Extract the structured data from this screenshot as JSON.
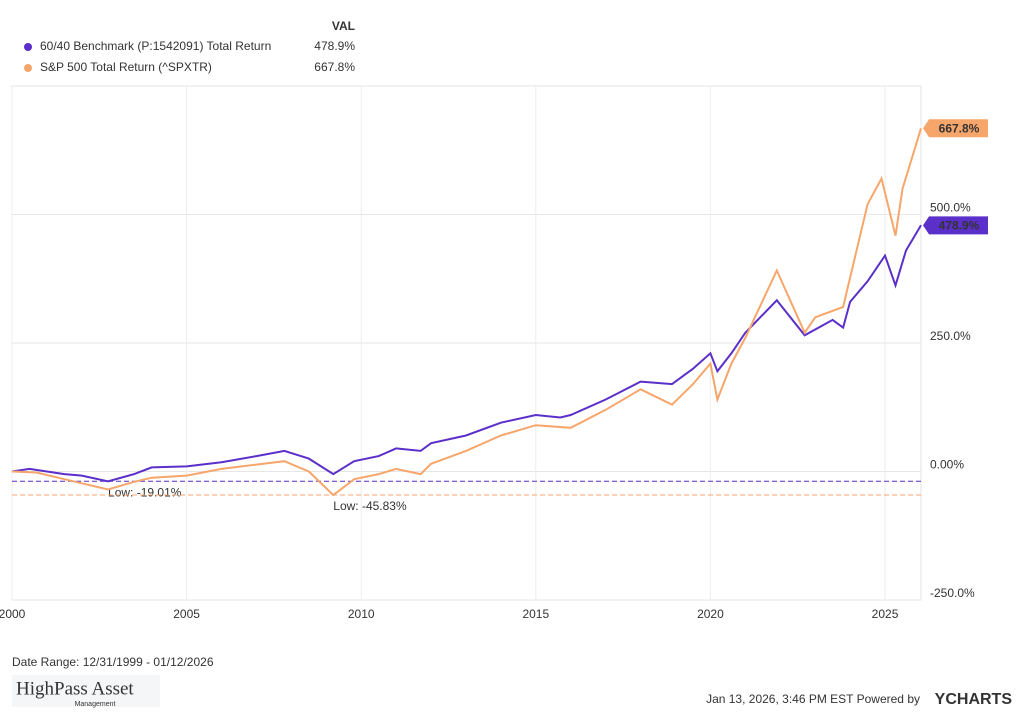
{
  "chart_data": {
    "type": "line",
    "legend_header": "VAL",
    "xlim": [
      2000,
      2026.03
    ],
    "xticks": [
      2000,
      2005,
      2010,
      2015,
      2020,
      2025
    ],
    "ylim": [
      -250,
      750
    ],
    "yticks": [
      {
        "value": -250,
        "label": "-250.0%"
      },
      {
        "value": 0,
        "label": "0.00%"
      },
      {
        "value": 250,
        "label": "250.0%"
      },
      {
        "value": 500,
        "label": "500.0%"
      }
    ],
    "grid": true,
    "series": [
      {
        "name": "60/40 Benchmark (P:1542091) Total Return",
        "color": "#5b2fc9",
        "end_label": "478.9%",
        "low": -19.01,
        "low_label": "Low: -19.01%",
        "x": [
          2000,
          2000.5,
          2001,
          2001.5,
          2002,
          2002.75,
          2003.5,
          2004,
          2005,
          2006,
          2007,
          2007.8,
          2008.5,
          2009.2,
          2009.8,
          2010.5,
          2011,
          2011.7,
          2012,
          2013,
          2014,
          2015,
          2015.7,
          2016,
          2017,
          2018,
          2018.9,
          2019.5,
          2020,
          2020.2,
          2020.6,
          2021,
          2021.9,
          2022.7,
          2023.5,
          2023.8,
          2024,
          2024.5,
          2025,
          2025.3,
          2025.6,
          2026.03
        ],
        "values": [
          0,
          5,
          0,
          -5,
          -8,
          -19.01,
          -5,
          8,
          10,
          18,
          30,
          40,
          25,
          -5,
          20,
          30,
          45,
          40,
          55,
          70,
          95,
          110,
          105,
          110,
          140,
          175,
          170,
          200,
          230,
          195,
          230,
          270,
          333,
          265,
          295,
          280,
          330,
          370,
          420,
          362,
          430,
          478.9
        ]
      },
      {
        "name": "S&P 500 Total Return (^SPXTR)",
        "color": "#f7a66b",
        "end_label": "667.8%",
        "low": -45.83,
        "low_label": "Low: -45.83%",
        "x": [
          2000,
          2000.7,
          2001.5,
          2002.75,
          2003.5,
          2004,
          2005,
          2006,
          2007.8,
          2008.5,
          2009.2,
          2009.8,
          2010.5,
          2011,
          2011.7,
          2012,
          2013,
          2014,
          2015,
          2016,
          2017,
          2018,
          2018.9,
          2019.5,
          2020,
          2020.2,
          2020.6,
          2021,
          2021.9,
          2022.7,
          2023,
          2023.8,
          2024.5,
          2024.9,
          2025.3,
          2025.5,
          2026.03
        ],
        "values": [
          0,
          -2,
          -15,
          -35,
          -20,
          -12,
          -8,
          5,
          20,
          0,
          -45.83,
          -15,
          -5,
          5,
          -5,
          15,
          40,
          70,
          90,
          85,
          120,
          160,
          130,
          170,
          210,
          140,
          210,
          260,
          391,
          270,
          300,
          320,
          520,
          570,
          459,
          550,
          667.8
        ]
      }
    ]
  },
  "footer": {
    "date_range": "Date Range: 12/31/1999 - 01/12/2026",
    "timestamp": "Jan 13, 2026, 3:46 PM EST Powered by",
    "brand": "YCHARTS",
    "logo": "HighPass Asset",
    "logo_sub": "Management"
  }
}
